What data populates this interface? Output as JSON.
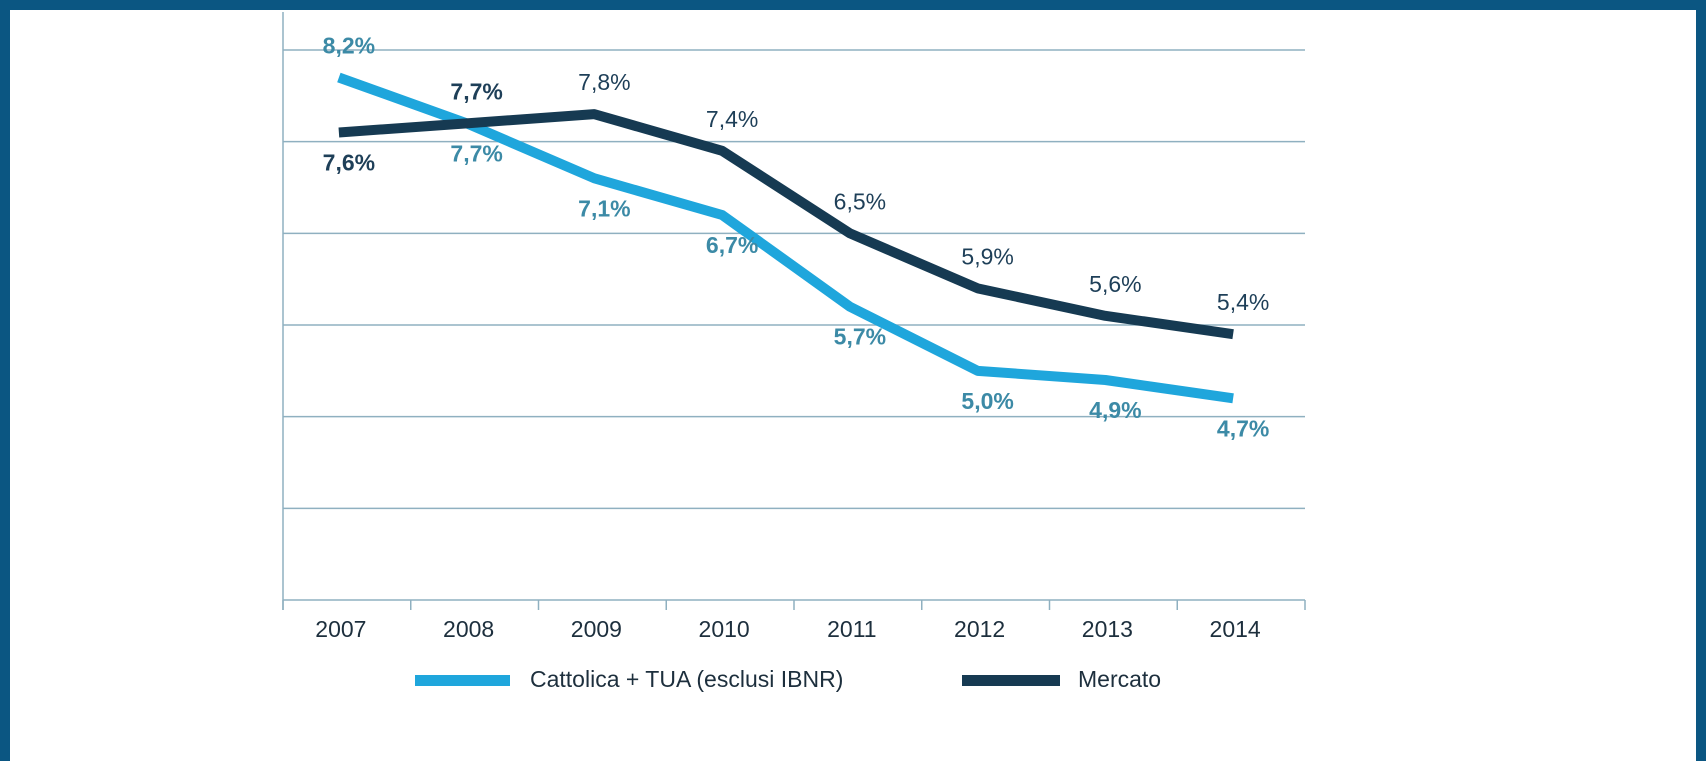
{
  "chart_data": {
    "type": "line",
    "categories": [
      "2007",
      "2008",
      "2009",
      "2010",
      "2011",
      "2012",
      "2013",
      "2014"
    ],
    "series": [
      {
        "name": "Cattolica + TUA (esclusi IBNR)",
        "color": "#1fa6dc",
        "values": [
          8.2,
          7.7,
          7.1,
          6.7,
          5.7,
          5.0,
          4.9,
          4.7
        ],
        "value_labels": [
          "8,2%",
          "7,7%",
          "7,1%",
          "6,7%",
          "5,7%",
          "5,0%",
          "4,9%",
          "4,7%"
        ]
      },
      {
        "name": "Mercato",
        "color": "#163a52",
        "values": [
          7.6,
          7.7,
          7.8,
          7.4,
          6.5,
          5.9,
          5.6,
          5.4
        ],
        "value_labels": [
          "7,6%",
          "7,7%",
          "7,8%",
          "7,4%",
          "6,5%",
          "5,9%",
          "5,6%",
          "5,4%"
        ]
      }
    ],
    "ylim": [
      2.5,
      8.5
    ],
    "yticks": [
      3.5,
      4.5,
      5.5,
      6.5,
      7.5,
      8.5
    ],
    "grid": true,
    "legend": "bottom"
  }
}
